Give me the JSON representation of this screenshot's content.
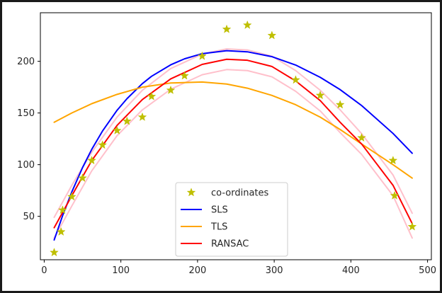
{
  "chart_data": {
    "type": "scatter",
    "title": "",
    "xlabel": "",
    "ylabel": "",
    "xlim": [
      -5,
      505
    ],
    "ylim": [
      8,
      247
    ],
    "x_ticks": [
      0,
      100,
      200,
      300,
      400,
      500
    ],
    "y_ticks": [
      50,
      100,
      150,
      200
    ],
    "grid": false,
    "legend_position": "bottom-center",
    "points": {
      "name": "co-ordinates",
      "color": "#bfbf00",
      "marker": "star",
      "x": [
        13,
        22,
        24,
        36,
        50,
        62,
        76,
        95,
        108,
        128,
        140,
        165,
        183,
        206,
        238,
        265,
        297,
        328,
        360,
        386,
        414,
        455,
        457,
        480
      ],
      "y": [
        15,
        35,
        56,
        69,
        87,
        104,
        119,
        133,
        142,
        146,
        166,
        172,
        186,
        205,
        231,
        235,
        225,
        182,
        167,
        158,
        126,
        104,
        70,
        40
      ]
    },
    "series": [
      {
        "name": "SLS",
        "color": "#0000ff",
        "x": [
          13,
          24,
          36,
          50,
          62,
          76,
          95,
          108,
          128,
          140,
          165,
          183,
          206,
          238,
          265,
          297,
          328,
          360,
          386,
          414,
          455,
          480
        ],
        "y": [
          27.1,
          50.7,
          73.6,
          97.2,
          114.8,
          132.5,
          152.6,
          163.9,
          178.4,
          185.5,
          196.6,
          202.4,
          207.4,
          210.3,
          209.2,
          204.5,
          196.4,
          184.5,
          172.6,
          157.2,
          130.2,
          111.0
        ]
      },
      {
        "name": "TLS",
        "color": "#ffa500",
        "x": [
          13,
          36,
          62,
          95,
          128,
          165,
          206,
          238,
          265,
          297,
          328,
          360,
          386,
          414,
          455,
          480
        ],
        "y": [
          141,
          150,
          159,
          168,
          175,
          179,
          180,
          178,
          174,
          167,
          158,
          146,
          134,
          120,
          100,
          87
        ]
      },
      {
        "name": "RANSAC",
        "color": "#ff0000",
        "x": [
          13,
          36,
          62,
          95,
          128,
          165,
          206,
          238,
          265,
          297,
          328,
          360,
          386,
          414,
          455,
          480
        ],
        "y": [
          39,
          70,
          104,
          138,
          163,
          183,
          197,
          202,
          201,
          195,
          181,
          162,
          141,
          120,
          80,
          43
        ]
      },
      {
        "name": "",
        "color": "#ffc0cb",
        "x": [
          13,
          36,
          62,
          95,
          128,
          165,
          206,
          238,
          265,
          297,
          328,
          360,
          386,
          414,
          455,
          480
        ],
        "y": [
          49,
          80,
          112,
          146,
          172,
          193,
          207,
          212,
          211,
          205,
          191,
          172,
          153,
          130,
          90,
          53
        ]
      },
      {
        "name": "",
        "color": "#ffc0cb",
        "x": [
          13,
          36,
          62,
          95,
          128,
          165,
          206,
          238,
          265,
          297,
          328,
          360,
          386,
          414,
          455,
          480
        ],
        "y": [
          29,
          60,
          94,
          128,
          153,
          173,
          187,
          192,
          191,
          185,
          171,
          152,
          131,
          110,
          70,
          29
        ]
      }
    ]
  }
}
